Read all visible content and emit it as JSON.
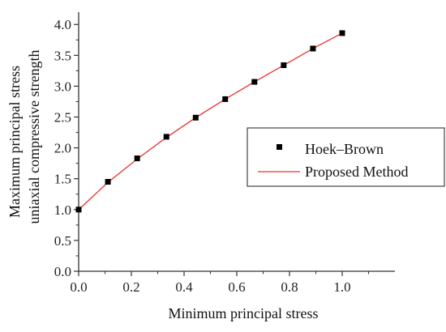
{
  "chart_data": {
    "type": "scatter",
    "title": "",
    "xlabel": "Minimum principal stress",
    "ylabel_line1": "Maximum principal stress",
    "ylabel_line2": "uniaxial compressive strength",
    "xlim": [
      0.0,
      1.2
    ],
    "ylim": [
      0.0,
      4.2
    ],
    "grid": false,
    "legend_position": "right",
    "xticks": [
      "0.0",
      "0.2",
      "0.4",
      "0.6",
      "0.8",
      "1.0"
    ],
    "xtick_values": [
      0.0,
      0.2,
      0.4,
      0.6,
      0.8,
      1.0
    ],
    "yticks": [
      "0.0",
      "0.5",
      "1.0",
      "1.5",
      "2.0",
      "2.5",
      "3.0",
      "3.5",
      "4.0"
    ],
    "ytick_values": [
      0.0,
      0.5,
      1.0,
      1.5,
      2.0,
      2.5,
      3.0,
      3.5,
      4.0
    ],
    "series": [
      {
        "name": "Hoek–Brown",
        "kind": "markers",
        "color": "#000000",
        "x": [
          0.0,
          0.111,
          0.222,
          0.333,
          0.444,
          0.556,
          0.667,
          0.778,
          0.889,
          1.0
        ],
        "y": [
          1.0,
          1.45,
          1.83,
          2.18,
          2.49,
          2.79,
          3.07,
          3.34,
          3.61,
          3.86
        ]
      },
      {
        "name": "Proposed Method",
        "kind": "line",
        "color": "#e8312b",
        "x": [
          0.0,
          0.111,
          0.222,
          0.333,
          0.444,
          0.556,
          0.667,
          0.778,
          0.889,
          1.0
        ],
        "y": [
          1.0,
          1.44,
          1.82,
          2.17,
          2.49,
          2.79,
          3.07,
          3.34,
          3.61,
          3.86
        ]
      }
    ]
  }
}
